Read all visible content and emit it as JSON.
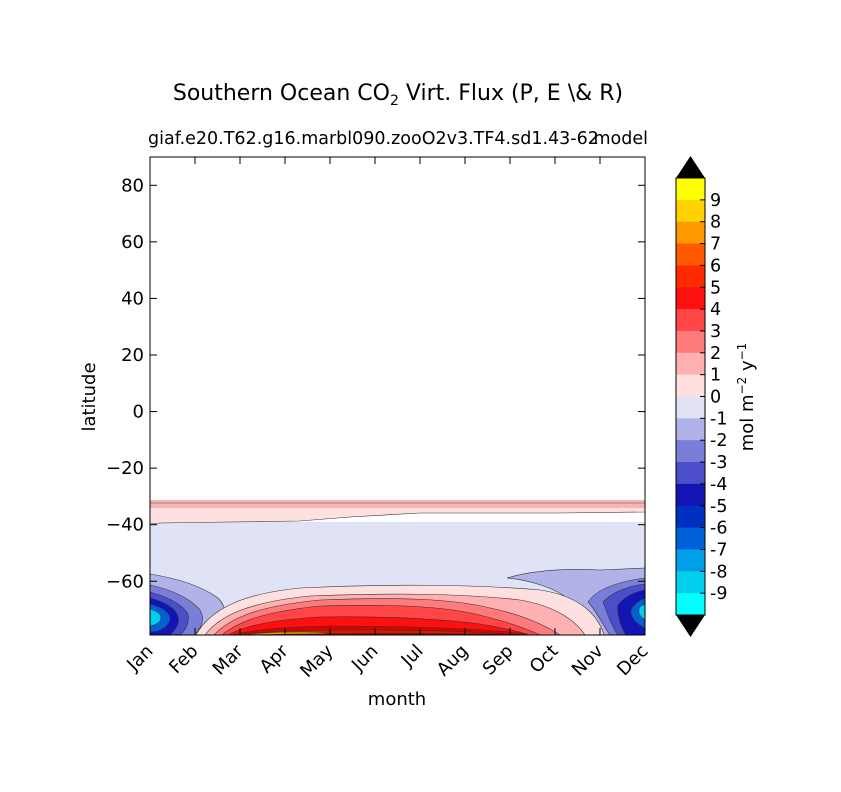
{
  "chart_data": {
    "type": "heatmap",
    "title_main": "Southern Ocean CO",
    "title_sub": "2",
    "title_rest": " Virt. Flux (P, E \\& R)",
    "case_label": "giaf.e20.T62.g16.marbl090.zooO2v3.TF4.sd1.43-62",
    "model_label": "model",
    "xlabel": "month",
    "ylabel": "latitude",
    "x_categories": [
      "Jan",
      "Feb",
      "Mar",
      "Apr",
      "May",
      "Jun",
      "Jul",
      "Aug",
      "Sep",
      "Oct",
      "Nov",
      "Dec"
    ],
    "xlim": [
      0,
      11
    ],
    "ylim": [
      -79,
      90
    ],
    "y_ticks": [
      80,
      60,
      40,
      20,
      0,
      -20,
      -40,
      -60
    ],
    "y_tick_labels": [
      "80",
      "60",
      "40",
      "20",
      "0",
      "−20",
      "−40",
      "−60"
    ],
    "colorbar": {
      "label": "mol m",
      "label_exp1": "−2",
      "label_mid": " y",
      "label_exp2": "−1",
      "extend": "both",
      "levels": [
        "9",
        "8",
        "7",
        "6",
        "5",
        "4",
        "3",
        "2",
        "1",
        "0",
        "-1",
        "-2",
        "-3",
        "-4",
        "-5",
        "-6",
        "-7",
        "-8",
        "-9"
      ],
      "colors": [
        "#ffff00",
        "#ffd200",
        "#ff9900",
        "#ff5a00",
        "#ff2a00",
        "#ff1010",
        "#ff4545",
        "#ff7a7a",
        "#ffb0b0",
        "#ffe0e0",
        "#e0e2f5",
        "#b0b2e8",
        "#7a7ed8",
        "#4a4ec8",
        "#1414b4",
        "#0030c0",
        "#0060d8",
        "#00a0e8",
        "#00d0ec",
        "#00ffff"
      ],
      "over_color": "#000000",
      "under_color": "#000000"
    },
    "regions": [
      {
        "name": "nh-blank",
        "lat_range": [
          -31,
          90
        ],
        "level": null
      },
      {
        "name": "band-1-to-2",
        "lat_range": [
          -34,
          -31
        ],
        "level": "1..2"
      },
      {
        "name": "band-0-to-1",
        "lat_range": [
          -40,
          -34
        ],
        "level": "0..1"
      },
      {
        "name": "band-neg1-to-0",
        "lat_range": [
          -64,
          -40
        ],
        "level": "-1..0"
      },
      {
        "name": "winter-high-flux",
        "months": [
          "Mar",
          "Oct"
        ],
        "lat_range": [
          -79,
          -65
        ],
        "max_level": "7..8"
      },
      {
        "name": "summer-low-flux",
        "months": [
          "Nov",
          "Feb"
        ],
        "lat_range": [
          -79,
          -58
        ],
        "min_level": "-9..-8"
      }
    ]
  }
}
